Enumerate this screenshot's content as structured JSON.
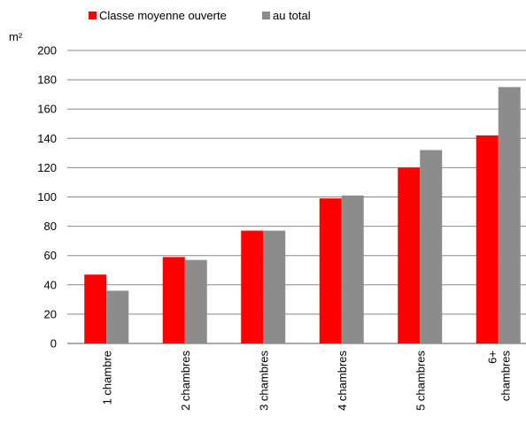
{
  "chart_data": {
    "type": "bar",
    "y_label": "m²",
    "categories": [
      "1 chambre",
      "2 chambres",
      "3 chambres",
      "4 chambres",
      "5 chambres",
      "6+\nchambres"
    ],
    "series": [
      {
        "name": "Classe moyenne ouverte",
        "color": "#ff0000",
        "values": [
          47,
          59,
          77,
          99,
          120,
          142
        ]
      },
      {
        "name": "au total",
        "color": "#8c8c8c",
        "values": [
          36,
          57,
          77,
          101,
          132,
          175
        ]
      }
    ],
    "ylim": [
      0,
      200
    ],
    "yticks": [
      0,
      20,
      40,
      60,
      80,
      100,
      120,
      140,
      160,
      180,
      200
    ],
    "grid": true
  }
}
